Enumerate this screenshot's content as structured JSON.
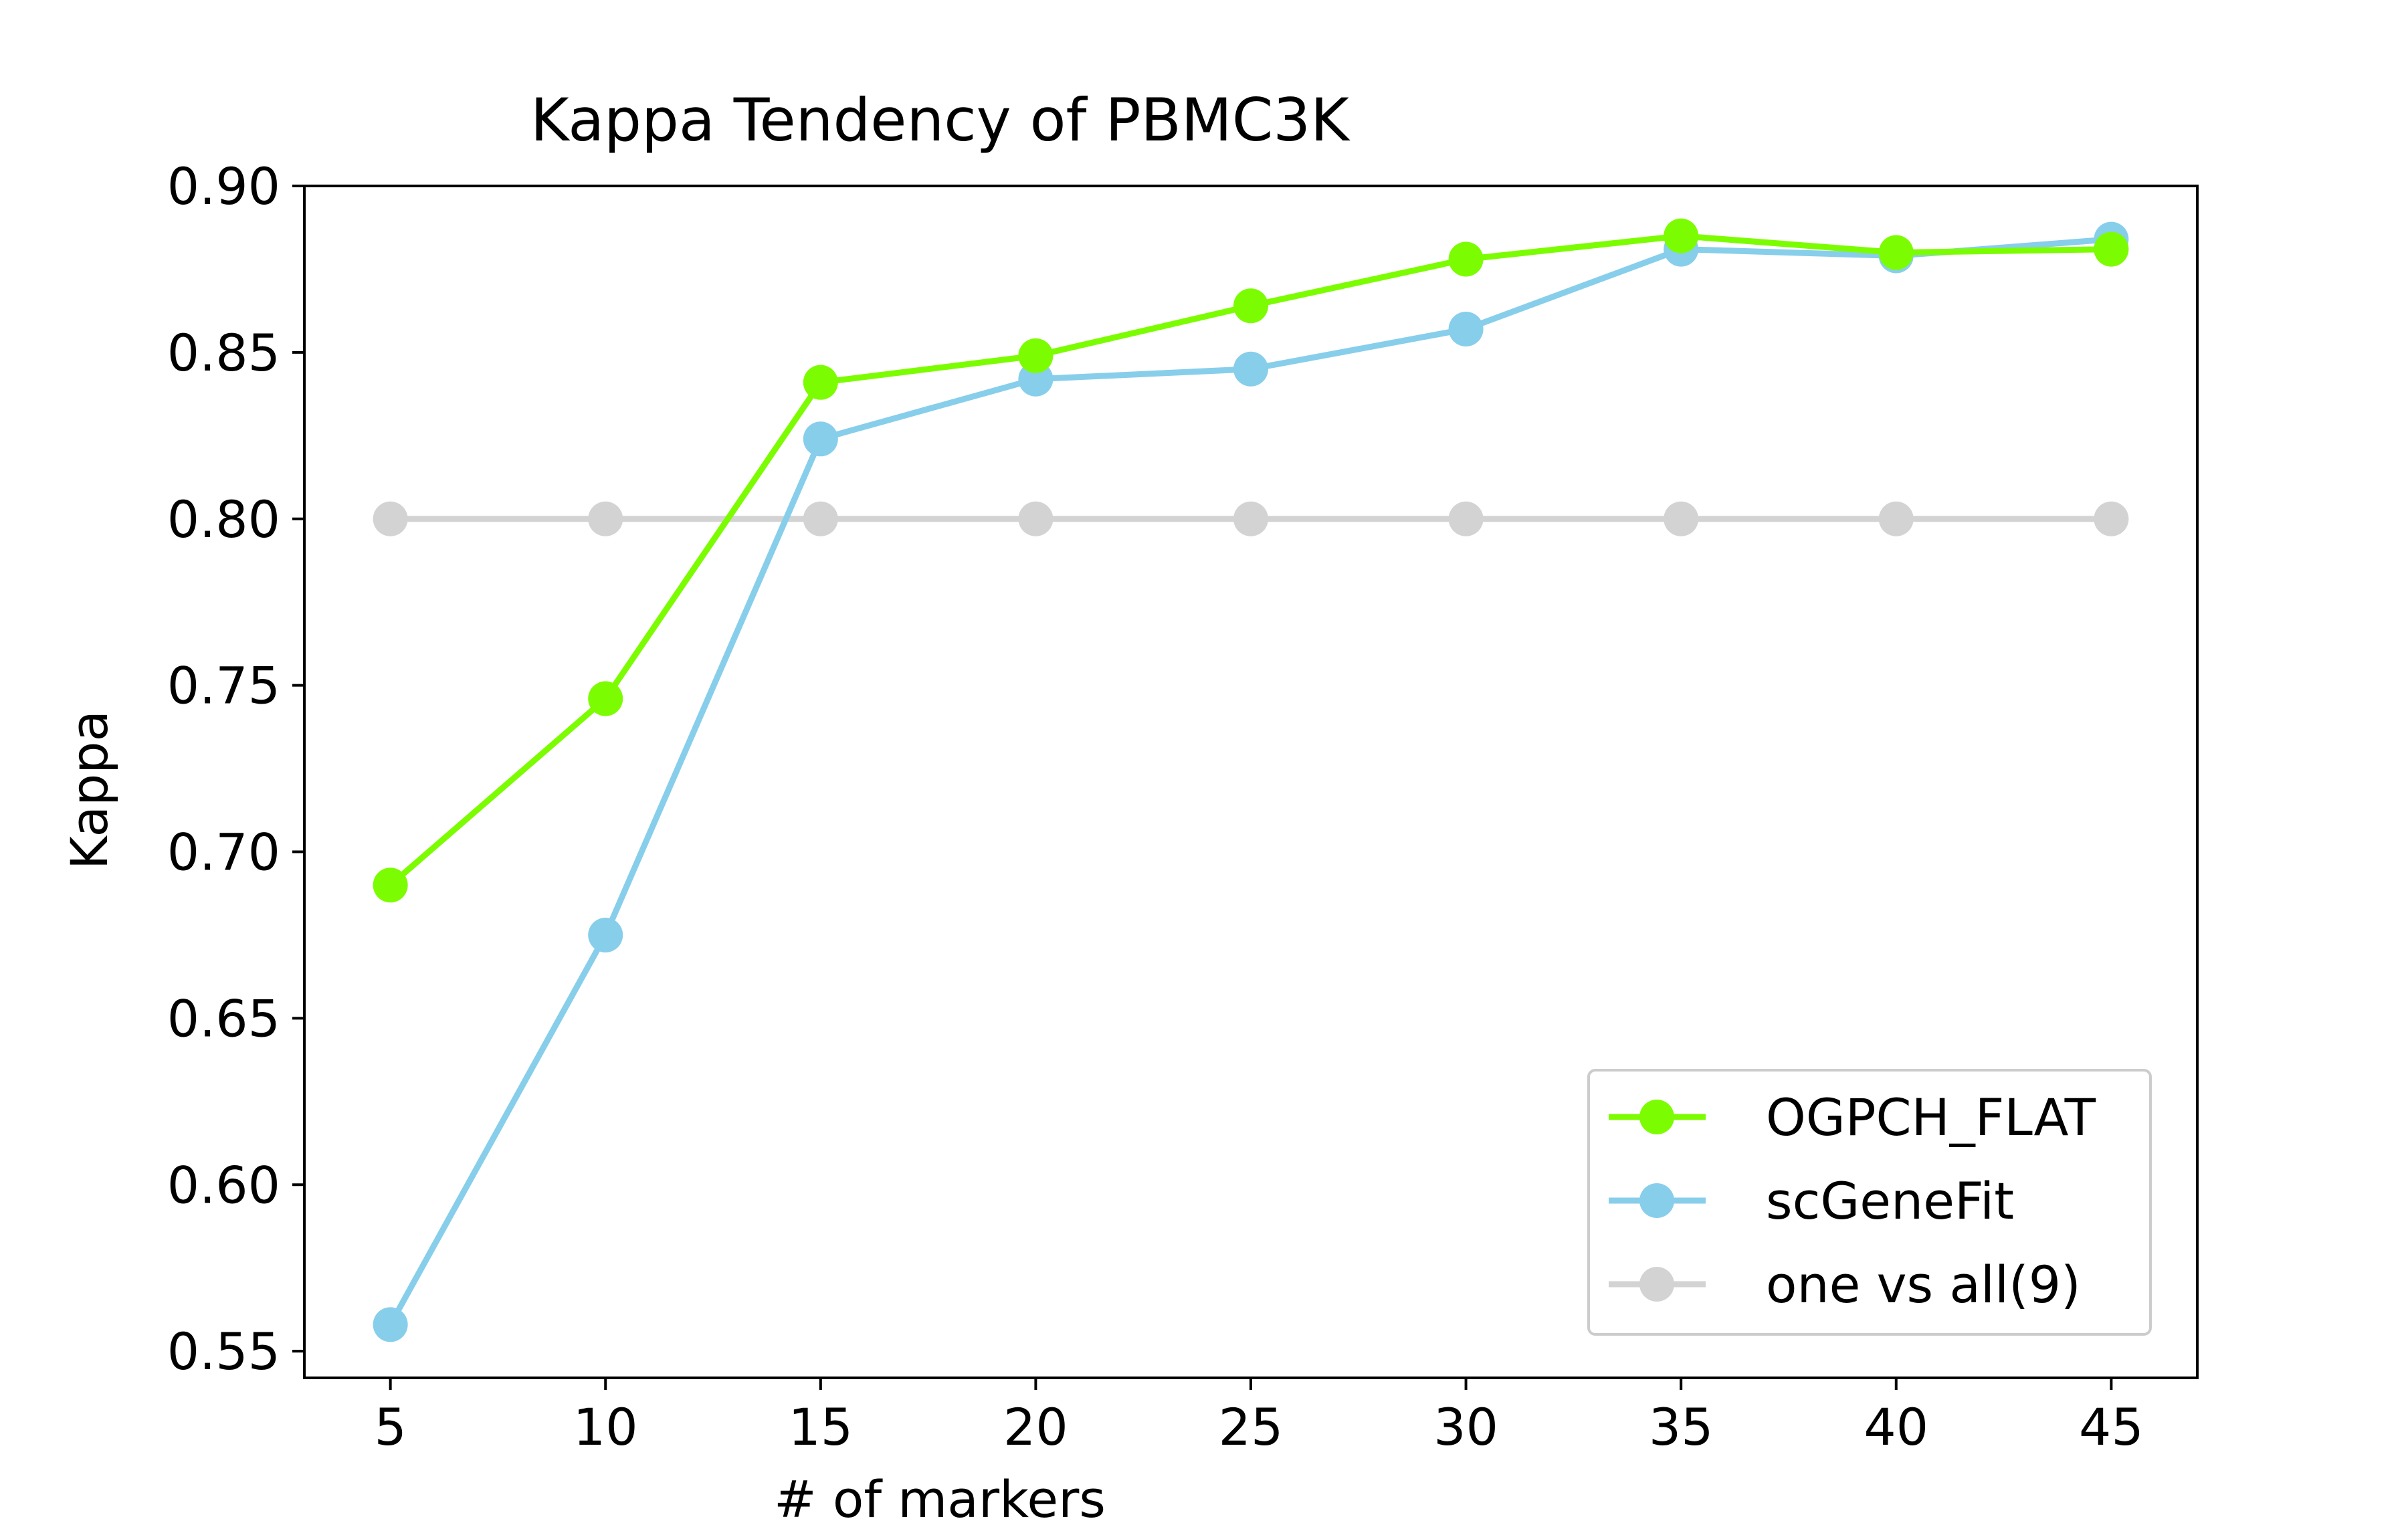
{
  "chart_data": {
    "type": "line",
    "title": "Kappa Tendency of PBMC3K",
    "xlabel": "# of markers",
    "ylabel": "Kappa",
    "x": [
      5,
      10,
      15,
      20,
      25,
      30,
      35,
      40,
      45
    ],
    "xticks": [
      "5",
      "10",
      "15",
      "20",
      "25",
      "30",
      "35",
      "40",
      "45"
    ],
    "yticks": [
      "0.55",
      "0.60",
      "0.65",
      "0.70",
      "0.75",
      "0.80",
      "0.85",
      "0.90"
    ],
    "xlim": [
      3,
      47
    ],
    "ylim": [
      0.542,
      0.9
    ],
    "grid": false,
    "legend_position": "lower-right",
    "series": [
      {
        "name": "OGPCH_FLAT",
        "color": "#7CFC00",
        "values": [
          0.69,
          0.746,
          0.841,
          0.849,
          0.864,
          0.878,
          0.885,
          0.88,
          0.881
        ]
      },
      {
        "name": "scGeneFit",
        "color": "#87CEEB",
        "values": [
          0.558,
          0.675,
          0.824,
          0.842,
          0.845,
          0.857,
          0.881,
          0.879,
          0.884
        ]
      },
      {
        "name": "one vs all(9)",
        "color": "#D3D3D3",
        "values": [
          0.8,
          0.8,
          0.8,
          0.8,
          0.8,
          0.8,
          0.8,
          0.8,
          0.8
        ]
      }
    ]
  }
}
